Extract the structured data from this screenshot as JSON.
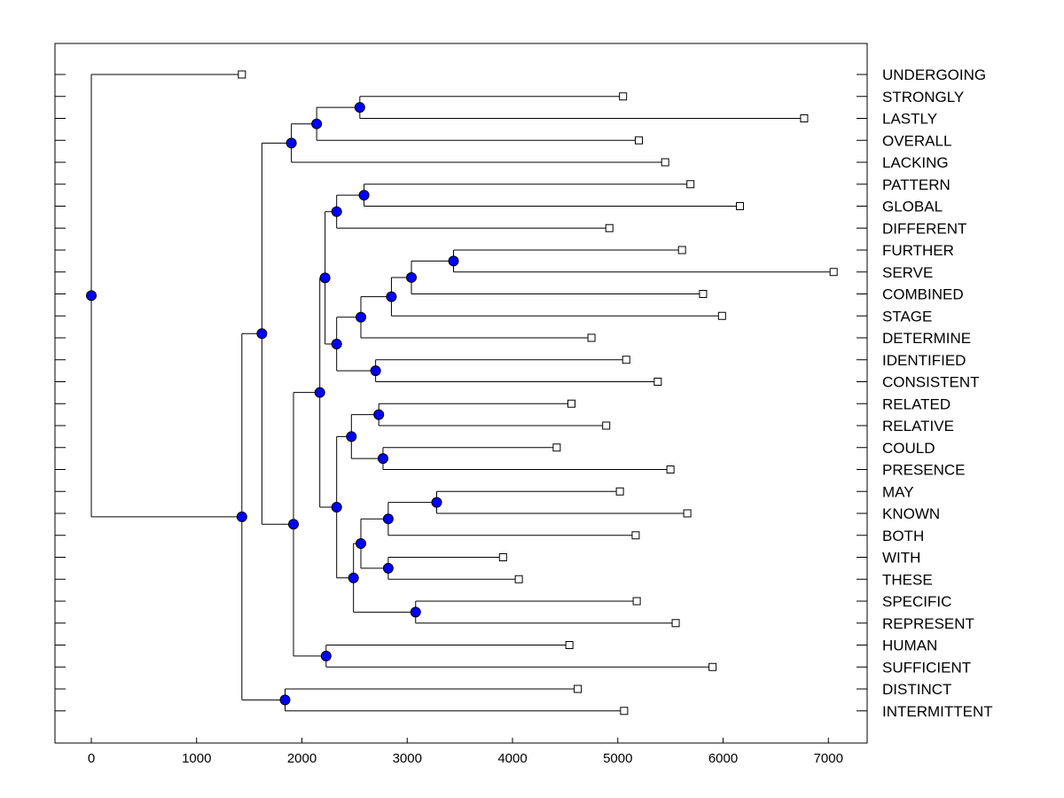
{
  "chart_data": {
    "type": "dendrogram",
    "title": "",
    "xlabel": "",
    "ylabel": "",
    "xlim": [
      -350,
      7400
    ],
    "x_ticks": [
      0,
      1000,
      2000,
      3000,
      4000,
      5000,
      6000,
      7000
    ],
    "x_tick_labels": [
      "0",
      "1000",
      "2000",
      "3000",
      "4000",
      "5000",
      "6000",
      "7000"
    ],
    "leaf_marker": "open-square",
    "node_marker": "filled-circle",
    "node_color": "#0000ff",
    "leaves": [
      {
        "label": "UNDERGOING",
        "x": 1430
      },
      {
        "label": "STRONGLY",
        "x": 5050
      },
      {
        "label": "LASTLY",
        "x": 6770
      },
      {
        "label": "OVERALL",
        "x": 5200
      },
      {
        "label": "LACKING",
        "x": 5450
      },
      {
        "label": "PATTERN",
        "x": 5690
      },
      {
        "label": "GLOBAL",
        "x": 6160
      },
      {
        "label": "DIFFERENT",
        "x": 4920
      },
      {
        "label": "FURTHER",
        "x": 5610
      },
      {
        "label": "SERVE",
        "x": 7050
      },
      {
        "label": "COMBINED",
        "x": 5810
      },
      {
        "label": "STAGE",
        "x": 5990
      },
      {
        "label": "DETERMINE",
        "x": 4750
      },
      {
        "label": "IDENTIFIED",
        "x": 5080
      },
      {
        "label": "CONSISTENT",
        "x": 5380
      },
      {
        "label": "RELATED",
        "x": 4560
      },
      {
        "label": "RELATIVE",
        "x": 4890
      },
      {
        "label": "COULD",
        "x": 4420
      },
      {
        "label": "PRESENCE",
        "x": 5500
      },
      {
        "label": "MAY",
        "x": 5020
      },
      {
        "label": "KNOWN",
        "x": 5660
      },
      {
        "label": "BOTH",
        "x": 5170
      },
      {
        "label": "WITH",
        "x": 3910
      },
      {
        "label": "THESE",
        "x": 4060
      },
      {
        "label": "SPECIFIC",
        "x": 5180
      },
      {
        "label": "REPRESENT",
        "x": 5550
      },
      {
        "label": "HUMAN",
        "x": 4540
      },
      {
        "label": "SUFFICIENT",
        "x": 5900
      },
      {
        "label": "DISTINCT",
        "x": 4620
      },
      {
        "label": "INTERMITTENT",
        "x": 5060
      }
    ],
    "merges": [
      {
        "id": "m1",
        "x": 2550,
        "children": [
          "L1",
          "L2"
        ]
      },
      {
        "id": "m2",
        "x": 2140,
        "children": [
          "m1",
          "L3"
        ]
      },
      {
        "id": "m3",
        "x": 1900,
        "children": [
          "m2",
          "L4"
        ]
      },
      {
        "id": "m4",
        "x": 2590,
        "children": [
          "L5",
          "L6"
        ]
      },
      {
        "id": "m5",
        "x": 2330,
        "children": [
          "m4",
          "L7"
        ]
      },
      {
        "id": "m6",
        "x": 3440,
        "children": [
          "L8",
          "L9"
        ]
      },
      {
        "id": "m7",
        "x": 3040,
        "children": [
          "m6",
          "L10"
        ]
      },
      {
        "id": "m8",
        "x": 2850,
        "children": [
          "m7",
          "L11"
        ]
      },
      {
        "id": "m9",
        "x": 2560,
        "children": [
          "m8",
          "L12"
        ]
      },
      {
        "id": "m10",
        "x": 2700,
        "children": [
          "L13",
          "L14"
        ]
      },
      {
        "id": "m11",
        "x": 2330,
        "children": [
          "m9",
          "m10"
        ]
      },
      {
        "id": "m12",
        "x": 2220,
        "children": [
          "m5",
          "m11"
        ]
      },
      {
        "id": "m13",
        "x": 2730,
        "children": [
          "L15",
          "L16"
        ]
      },
      {
        "id": "m14",
        "x": 2770,
        "children": [
          "L17",
          "L18"
        ]
      },
      {
        "id": "m15",
        "x": 2470,
        "children": [
          "m13",
          "m14"
        ]
      },
      {
        "id": "m16",
        "x": 3280,
        "children": [
          "L19",
          "L20"
        ]
      },
      {
        "id": "m17",
        "x": 2820,
        "children": [
          "m16",
          "L21"
        ]
      },
      {
        "id": "m18",
        "x": 2820,
        "children": [
          "L22",
          "L23"
        ]
      },
      {
        "id": "m19",
        "x": 2560,
        "children": [
          "m17",
          "m18"
        ]
      },
      {
        "id": "m20",
        "x": 3080,
        "children": [
          "L24",
          "L25"
        ]
      },
      {
        "id": "m21",
        "x": 2490,
        "children": [
          "m19",
          "m20"
        ]
      },
      {
        "id": "m22",
        "x": 2330,
        "children": [
          "m15",
          "m21"
        ]
      },
      {
        "id": "m23",
        "x": 2170,
        "children": [
          "m12",
          "m22"
        ]
      },
      {
        "id": "m24",
        "x": 2230,
        "children": [
          "L26",
          "L27"
        ]
      },
      {
        "id": "m25",
        "x": 1920,
        "children": [
          "m23",
          "m24"
        ]
      },
      {
        "id": "m26",
        "x": 1620,
        "children": [
          "m3",
          "m25"
        ]
      },
      {
        "id": "m27",
        "x": 1840,
        "children": [
          "L28",
          "L29"
        ]
      },
      {
        "id": "m28",
        "x": 1430,
        "children": [
          "m26",
          "m27"
        ]
      },
      {
        "id": "m29",
        "x": 0,
        "children": [
          "L0",
          "m28"
        ]
      }
    ]
  }
}
